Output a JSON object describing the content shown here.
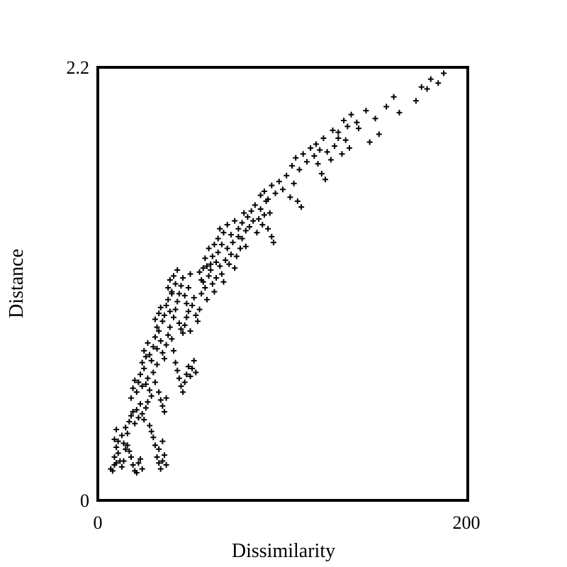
{
  "chart_data": {
    "type": "scatter",
    "title": "",
    "xlabel": "Dissimilarity",
    "ylabel": "Distance",
    "xlim": [
      0,
      200
    ],
    "ylim": [
      0,
      2.2
    ],
    "x_ticks": [
      {
        "value": 0,
        "label": "0"
      },
      {
        "value": 200,
        "label": "200"
      }
    ],
    "y_ticks": [
      {
        "value": 0,
        "label": "0"
      },
      {
        "value": 2.2,
        "label": "2.2"
      }
    ],
    "grid": false,
    "marker": "+",
    "marker_color": "#000000",
    "series": [
      {
        "points": [
          [
            7,
            0.16
          ],
          [
            8,
            0.15
          ],
          [
            9,
            0.18
          ],
          [
            10,
            0.19
          ],
          [
            9,
            0.22
          ],
          [
            11,
            0.24
          ],
          [
            10,
            0.27
          ],
          [
            12,
            0.2
          ],
          [
            13,
            0.17
          ],
          [
            14,
            0.2
          ],
          [
            15,
            0.26
          ],
          [
            16,
            0.28
          ],
          [
            17,
            0.25
          ],
          [
            18,
            0.22
          ],
          [
            19,
            0.18
          ],
          [
            20,
            0.15
          ],
          [
            21,
            0.14
          ],
          [
            22,
            0.19
          ],
          [
            23,
            0.21
          ],
          [
            24,
            0.16
          ],
          [
            9,
            0.31
          ],
          [
            10,
            0.36
          ],
          [
            11,
            0.3
          ],
          [
            13,
            0.33
          ],
          [
            14,
            0.29
          ],
          [
            15,
            0.37
          ],
          [
            16,
            0.34
          ],
          [
            17,
            0.4
          ],
          [
            18,
            0.43
          ],
          [
            19,
            0.45
          ],
          [
            20,
            0.39
          ],
          [
            21,
            0.46
          ],
          [
            22,
            0.42
          ],
          [
            23,
            0.49
          ],
          [
            24,
            0.44
          ],
          [
            25,
            0.41
          ],
          [
            26,
            0.47
          ],
          [
            27,
            0.5
          ],
          [
            28,
            0.38
          ],
          [
            29,
            0.35
          ],
          [
            30,
            0.32
          ],
          [
            31,
            0.28
          ],
          [
            32,
            0.22
          ],
          [
            33,
            0.19
          ],
          [
            34,
            0.16
          ],
          [
            35,
            0.2
          ],
          [
            36,
            0.23
          ],
          [
            37,
            0.18
          ],
          [
            33,
            0.26
          ],
          [
            35,
            0.3
          ],
          [
            18,
            0.52
          ],
          [
            19,
            0.57
          ],
          [
            20,
            0.61
          ],
          [
            21,
            0.55
          ],
          [
            22,
            0.6
          ],
          [
            23,
            0.64
          ],
          [
            24,
            0.58
          ],
          [
            25,
            0.67
          ],
          [
            26,
            0.59
          ],
          [
            27,
            0.62
          ],
          [
            28,
            0.56
          ],
          [
            29,
            0.53
          ],
          [
            30,
            0.65
          ],
          [
            31,
            0.6
          ],
          [
            32,
            0.69
          ],
          [
            33,
            0.55
          ],
          [
            34,
            0.51
          ],
          [
            35,
            0.48
          ],
          [
            36,
            0.45
          ],
          [
            37,
            0.52
          ],
          [
            24,
            0.7
          ],
          [
            25,
            0.76
          ],
          [
            26,
            0.73
          ],
          [
            27,
            0.8
          ],
          [
            28,
            0.74
          ],
          [
            29,
            0.71
          ],
          [
            30,
            0.78
          ],
          [
            31,
            0.83
          ],
          [
            32,
            0.77
          ],
          [
            33,
            0.86
          ],
          [
            34,
            0.81
          ],
          [
            35,
            0.75
          ],
          [
            36,
            0.72
          ],
          [
            37,
            0.79
          ],
          [
            38,
            0.84
          ],
          [
            39,
            0.88
          ],
          [
            40,
            0.82
          ],
          [
            41,
            0.76
          ],
          [
            42,
            0.7
          ],
          [
            43,
            0.66
          ],
          [
            44,
            0.62
          ],
          [
            45,
            0.58
          ],
          [
            46,
            0.55
          ],
          [
            47,
            0.6
          ],
          [
            48,
            0.64
          ],
          [
            49,
            0.68
          ],
          [
            50,
            0.63
          ],
          [
            51,
            0.67
          ],
          [
            52,
            0.71
          ],
          [
            53,
            0.65
          ],
          [
            31,
            0.92
          ],
          [
            32,
            0.88
          ],
          [
            33,
            0.95
          ],
          [
            34,
            0.98
          ],
          [
            35,
            0.91
          ],
          [
            36,
            0.94
          ],
          [
            37,
            0.99
          ],
          [
            38,
            1.02
          ],
          [
            39,
            0.96
          ],
          [
            40,
            1.05
          ],
          [
            41,
            0.93
          ],
          [
            42,
            0.97
          ],
          [
            43,
            1.01
          ],
          [
            44,
            0.9
          ],
          [
            45,
            0.87
          ],
          [
            46,
            0.85
          ],
          [
            47,
            0.89
          ],
          [
            48,
            0.93
          ],
          [
            49,
            0.96
          ],
          [
            50,
            0.86
          ],
          [
            38,
            1.08
          ],
          [
            39,
            1.12
          ],
          [
            40,
            1.06
          ],
          [
            41,
            1.14
          ],
          [
            42,
            1.1
          ],
          [
            43,
            1.17
          ],
          [
            44,
            1.05
          ],
          [
            45,
            1.09
          ],
          [
            46,
            1.13
          ],
          [
            47,
            1.04
          ],
          [
            48,
            1.0
          ],
          [
            49,
            1.08
          ],
          [
            50,
            1.15
          ],
          [
            51,
            0.99
          ],
          [
            52,
            1.03
          ],
          [
            53,
            0.94
          ],
          [
            54,
            0.91
          ],
          [
            55,
            0.97
          ],
          [
            56,
            1.05
          ],
          [
            57,
            1.11
          ],
          [
            55,
            1.16
          ],
          [
            56,
            1.12
          ],
          [
            57,
            1.18
          ],
          [
            58,
            1.08
          ],
          [
            59,
            1.02
          ],
          [
            60,
            1.14
          ],
          [
            61,
            1.2
          ],
          [
            62,
            1.1
          ],
          [
            63,
            1.06
          ],
          [
            64,
            1.13
          ],
          [
            58,
            1.23
          ],
          [
            59,
            1.19
          ],
          [
            60,
            1.28
          ],
          [
            61,
            1.17
          ],
          [
            62,
            1.24
          ],
          [
            63,
            1.3
          ],
          [
            64,
            1.21
          ],
          [
            65,
            1.26
          ],
          [
            66,
            1.19
          ],
          [
            67,
            1.15
          ],
          [
            68,
            1.11
          ],
          [
            69,
            1.22
          ],
          [
            70,
            1.28
          ],
          [
            71,
            1.2
          ],
          [
            72,
            1.25
          ],
          [
            73,
            1.31
          ],
          [
            74,
            1.18
          ],
          [
            75,
            1.24
          ],
          [
            76,
            1.34
          ],
          [
            77,
            1.28
          ],
          [
            65,
            1.33
          ],
          [
            66,
            1.38
          ],
          [
            67,
            1.3
          ],
          [
            68,
            1.36
          ],
          [
            70,
            1.4
          ],
          [
            72,
            1.35
          ],
          [
            74,
            1.42
          ],
          [
            76,
            1.38
          ],
          [
            78,
            1.33
          ],
          [
            80,
            1.29
          ],
          [
            78,
            1.41
          ],
          [
            79,
            1.46
          ],
          [
            80,
            1.37
          ],
          [
            81,
            1.44
          ],
          [
            82,
            1.39
          ],
          [
            83,
            1.47
          ],
          [
            84,
            1.42
          ],
          [
            85,
            1.5
          ],
          [
            86,
            1.36
          ],
          [
            87,
            1.43
          ],
          [
            88,
            1.48
          ],
          [
            89,
            1.4
          ],
          [
            90,
            1.45
          ],
          [
            91,
            1.52
          ],
          [
            92,
            1.38
          ],
          [
            93,
            1.46
          ],
          [
            94,
            1.34
          ],
          [
            95,
            1.31
          ],
          [
            88,
            1.55
          ],
          [
            90,
            1.57
          ],
          [
            92,
            1.53
          ],
          [
            94,
            1.6
          ],
          [
            96,
            1.56
          ],
          [
            98,
            1.62
          ],
          [
            100,
            1.58
          ],
          [
            102,
            1.65
          ],
          [
            104,
            1.54
          ],
          [
            106,
            1.61
          ],
          [
            108,
            1.52
          ],
          [
            110,
            1.49
          ],
          [
            105,
            1.7
          ],
          [
            107,
            1.74
          ],
          [
            109,
            1.68
          ],
          [
            111,
            1.76
          ],
          [
            113,
            1.72
          ],
          [
            115,
            1.79
          ],
          [
            117,
            1.75
          ],
          [
            119,
            1.71
          ],
          [
            121,
            1.66
          ],
          [
            123,
            1.63
          ],
          [
            118,
            1.81
          ],
          [
            120,
            1.78
          ],
          [
            122,
            1.84
          ],
          [
            124,
            1.77
          ],
          [
            126,
            1.73
          ],
          [
            128,
            1.8
          ],
          [
            130,
            1.87
          ],
          [
            132,
            1.76
          ],
          [
            134,
            1.83
          ],
          [
            136,
            1.79
          ],
          [
            127,
            1.88
          ],
          [
            130,
            1.84
          ],
          [
            135,
            1.9
          ],
          [
            140,
            1.92
          ],
          [
            145,
            1.98
          ],
          [
            150,
            1.94
          ],
          [
            156,
            2.0
          ],
          [
            163,
            1.97
          ],
          [
            172,
            2.03
          ],
          [
            178,
            2.09
          ],
          [
            184,
            2.12
          ],
          [
            187,
            2.17
          ],
          [
            137,
            1.96
          ],
          [
            141,
            1.89
          ],
          [
            133,
            1.93
          ],
          [
            147,
            1.82
          ],
          [
            152,
            1.86
          ],
          [
            160,
            2.05
          ],
          [
            175,
            2.1
          ],
          [
            180,
            2.14
          ]
        ]
      }
    ]
  }
}
